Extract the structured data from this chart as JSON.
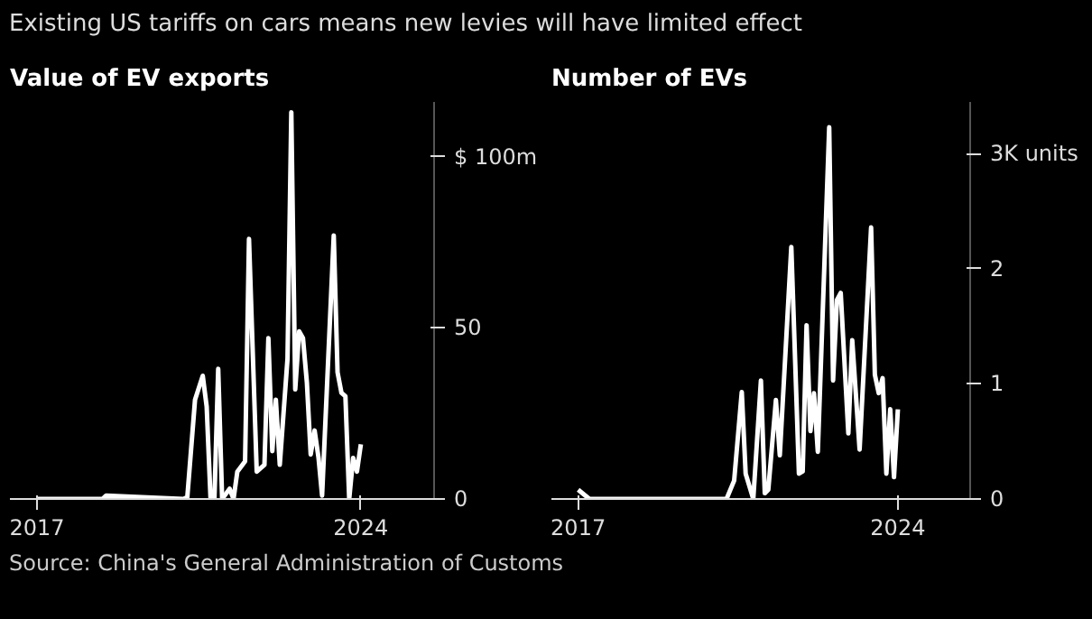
{
  "chart_data": [
    {
      "type": "line",
      "title": "Value of EV exports",
      "subtitle": "Existing US tariffs on cars means new levies will have limited effect",
      "x": [
        "2017-01",
        "2018-06",
        "2018-07",
        "2020-03",
        "2020-04",
        "2020-06",
        "2020-08",
        "2020-09",
        "2020-10",
        "2020-11",
        "2020-12",
        "2021-01",
        "2021-03",
        "2021-04",
        "2021-05",
        "2021-07",
        "2021-08",
        "2021-10",
        "2021-12",
        "2022-01",
        "2022-02",
        "2022-03",
        "2022-04",
        "2022-06",
        "2022-07",
        "2022-08",
        "2022-09",
        "2022-10",
        "2022-11",
        "2022-12",
        "2023-01",
        "2023-02",
        "2023-03",
        "2023-06",
        "2023-07",
        "2023-08",
        "2023-09",
        "2023-10",
        "2023-11",
        "2023-12",
        "2024-01"
      ],
      "series": [
        {
          "color": "#ffffff",
          "values": [
            0,
            0,
            1,
            0,
            0.5,
            29,
            36,
            27,
            0.5,
            0,
            38,
            0,
            3,
            0,
            8,
            11,
            76,
            8,
            10,
            47,
            14,
            29,
            10,
            41,
            113,
            32,
            49,
            47,
            34,
            13,
            20,
            12,
            1,
            77,
            37,
            31,
            30,
            0,
            12,
            8,
            16
          ]
        }
      ],
      "xlim": [
        "2016-06",
        "2025-08"
      ],
      "ylim": [
        0,
        116
      ],
      "xticks": [
        "2017",
        "2024"
      ],
      "yticks": [
        0,
        50,
        {
          "value": 100,
          "label": "$ 100m"
        }
      ],
      "grid": false,
      "line_style": "solid",
      "marker": "none"
    },
    {
      "type": "line",
      "title": "Number of EVs",
      "x": [
        "2017-01",
        "2017-04",
        "2020-04",
        "2020-06",
        "2020-08",
        "2020-09",
        "2020-11",
        "2021-01",
        "2021-02",
        "2021-03",
        "2021-05",
        "2021-06",
        "2021-09",
        "2021-11",
        "2021-12",
        "2022-01",
        "2022-02",
        "2022-03",
        "2022-04",
        "2022-07",
        "2022-08",
        "2022-09",
        "2022-10",
        "2022-12",
        "2023-01",
        "2023-03",
        "2023-06",
        "2023-07",
        "2023-08",
        "2023-09",
        "2023-10",
        "2023-11",
        "2023-12",
        "2024-01"
      ],
      "series": [
        {
          "color": "#ffffff",
          "values": [
            0.08,
            0,
            0,
            0.16,
            0.93,
            0.22,
            0,
            1.03,
            0.05,
            0.08,
            0.86,
            0.38,
            2.19,
            0.22,
            0.24,
            1.51,
            0.59,
            0.92,
            0.41,
            3.23,
            1.03,
            1.73,
            1.79,
            0.57,
            1.38,
            0.43,
            2.36,
            1.08,
            0.92,
            1.05,
            0.22,
            0.78,
            0.19,
            0.78
          ]
        }
      ],
      "xlim": [
        "2016-06",
        "2025-08"
      ],
      "ylim": [
        0,
        3.45
      ],
      "xticks": [
        "2017",
        "2024"
      ],
      "yticks": [
        0,
        1,
        2,
        {
          "value": 3,
          "label": "3K units"
        }
      ],
      "grid": false,
      "line_style": "solid",
      "marker": "none",
      "annotations": [
        "Source: China's General Administration of Customs"
      ]
    }
  ]
}
